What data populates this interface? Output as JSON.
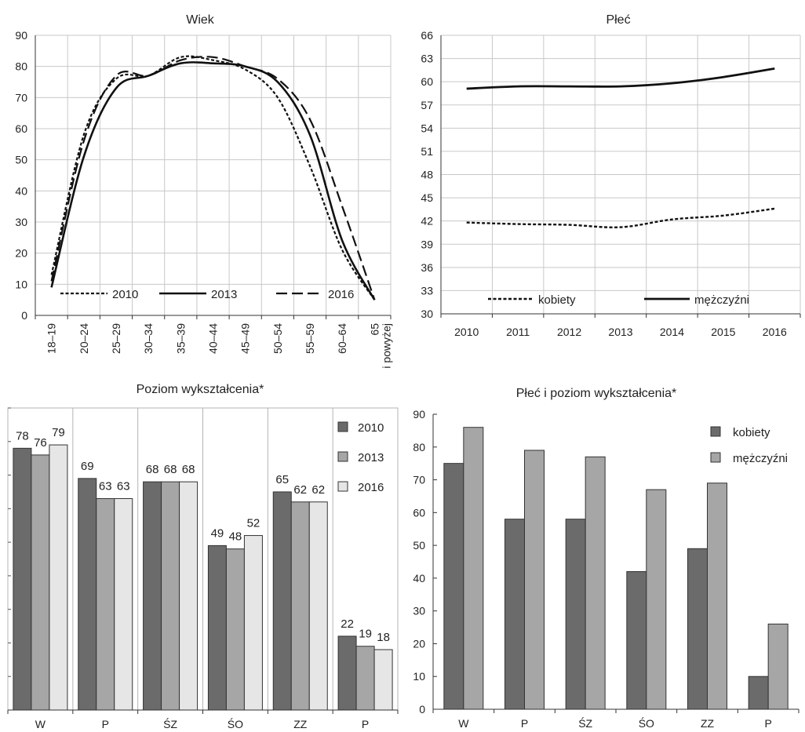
{
  "chart_data": [
    {
      "type": "line",
      "title": "Wiek",
      "categories": [
        "18–19",
        "20–24",
        "25–29",
        "30–34",
        "35–39",
        "40–44",
        "45–49",
        "50–54",
        "55–59",
        "60–64",
        "65 i powyżej"
      ],
      "category_lines": [
        [
          "18–19"
        ],
        [
          "20–24"
        ],
        [
          "25–29"
        ],
        [
          "30–34"
        ],
        [
          "35–39"
        ],
        [
          "40–44"
        ],
        [
          "45–49"
        ],
        [
          "50–54"
        ],
        [
          "55–59"
        ],
        [
          "60–64"
        ],
        [
          "65",
          "i powyżej"
        ]
      ],
      "ylim": [
        0,
        90
      ],
      "yticks": [
        0,
        10,
        20,
        30,
        40,
        50,
        60,
        70,
        80,
        90
      ],
      "grid": true,
      "legend_position": "bottom",
      "series": [
        {
          "name": "2010",
          "style": "dotted",
          "values": [
            13,
            58,
            76,
            77,
            83,
            82,
            79,
            70,
            48,
            21,
            5
          ]
        },
        {
          "name": "2013",
          "style": "solid",
          "values": [
            9,
            51,
            73,
            77,
            81,
            81,
            80,
            75,
            58,
            24,
            5
          ]
        },
        {
          "name": "2016",
          "style": "dashed",
          "values": [
            11,
            56,
            77,
            77,
            82,
            83,
            80,
            76,
            63,
            35,
            5
          ]
        }
      ]
    },
    {
      "type": "line",
      "title": "Płeć",
      "categories": [
        "2010",
        "2011",
        "2012",
        "2013",
        "2014",
        "2015",
        "2016"
      ],
      "ylim": [
        30,
        66
      ],
      "yticks": [
        30,
        33,
        36,
        39,
        42,
        45,
        48,
        51,
        54,
        57,
        60,
        63,
        66
      ],
      "grid": true,
      "legend_position": "bottom",
      "series": [
        {
          "name": "kobiety",
          "style": "dotted",
          "values": [
            41.8,
            41.6,
            41.5,
            41.2,
            42.2,
            42.7,
            43.6
          ]
        },
        {
          "name": "mężczyźni",
          "style": "solid",
          "values": [
            59.1,
            59.4,
            59.4,
            59.4,
            59.8,
            60.6,
            61.7
          ]
        }
      ]
    },
    {
      "type": "bar",
      "title": "Poziom wykształcenia*",
      "categories": [
        "W",
        "P",
        "ŚZ",
        "ŚO",
        "ZZ",
        "P"
      ],
      "ylim": [
        0,
        90
      ],
      "legend_position": "top-right",
      "series": [
        {
          "name": "2010",
          "color": "#6b6b6b",
          "values": [
            78,
            69,
            68,
            49,
            65,
            22
          ]
        },
        {
          "name": "2013",
          "color": "#a6a6a6",
          "values": [
            76,
            63,
            68,
            48,
            62,
            19
          ]
        },
        {
          "name": "2016",
          "color": "#e6e6e6",
          "values": [
            79,
            63,
            68,
            52,
            62,
            18
          ]
        }
      ]
    },
    {
      "type": "bar",
      "title": "Płeć i poziom wykształcenia*",
      "categories": [
        "W",
        "P",
        "ŚZ",
        "ŚO",
        "ZZ",
        "P"
      ],
      "ylim": [
        0,
        90
      ],
      "yticks": [
        0,
        10,
        20,
        30,
        40,
        50,
        60,
        70,
        80,
        90
      ],
      "legend_position": "top-right",
      "series": [
        {
          "name": "kobiety",
          "color": "#6b6b6b",
          "values": [
            75,
            58,
            58,
            42,
            49,
            10
          ]
        },
        {
          "name": "mężczyźni",
          "color": "#a6a6a6",
          "values": [
            86,
            79,
            77,
            67,
            69,
            26
          ]
        }
      ]
    }
  ]
}
